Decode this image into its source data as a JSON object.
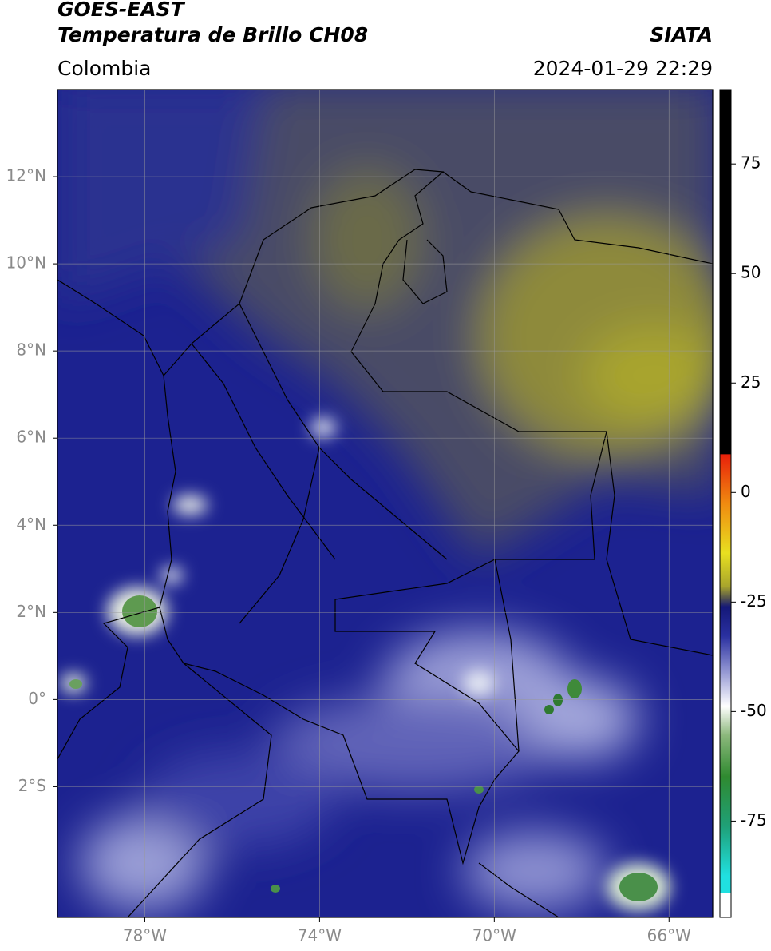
{
  "header": {
    "title": "GOES-EAST",
    "subtitle": "Temperatura de Brillo CH08",
    "source": "SIATA",
    "region": "Colombia",
    "timestamp": "2024-01-29 22:29"
  },
  "map": {
    "xlim": [
      -80,
      -65
    ],
    "ylim": [
      -5,
      14
    ],
    "xticks": [
      {
        "value": -78,
        "label": "78°W"
      },
      {
        "value": -74,
        "label": "74°W"
      },
      {
        "value": -70,
        "label": "70°W"
      },
      {
        "value": -66,
        "label": "66°W"
      }
    ],
    "yticks": [
      {
        "value": 12,
        "label": "12°N"
      },
      {
        "value": 10,
        "label": "10°N"
      },
      {
        "value": 8,
        "label": "8°N"
      },
      {
        "value": 6,
        "label": "6°N"
      },
      {
        "value": 4,
        "label": "4°N"
      },
      {
        "value": 2,
        "label": "2°N"
      },
      {
        "value": 0,
        "label": "0°"
      },
      {
        "value": -2,
        "label": "2°S"
      }
    ],
    "grid": true,
    "colorbar": {
      "lim": [
        -97,
        92
      ],
      "ticks": [
        75,
        50,
        25,
        0,
        -25,
        -50,
        -75
      ]
    }
  }
}
